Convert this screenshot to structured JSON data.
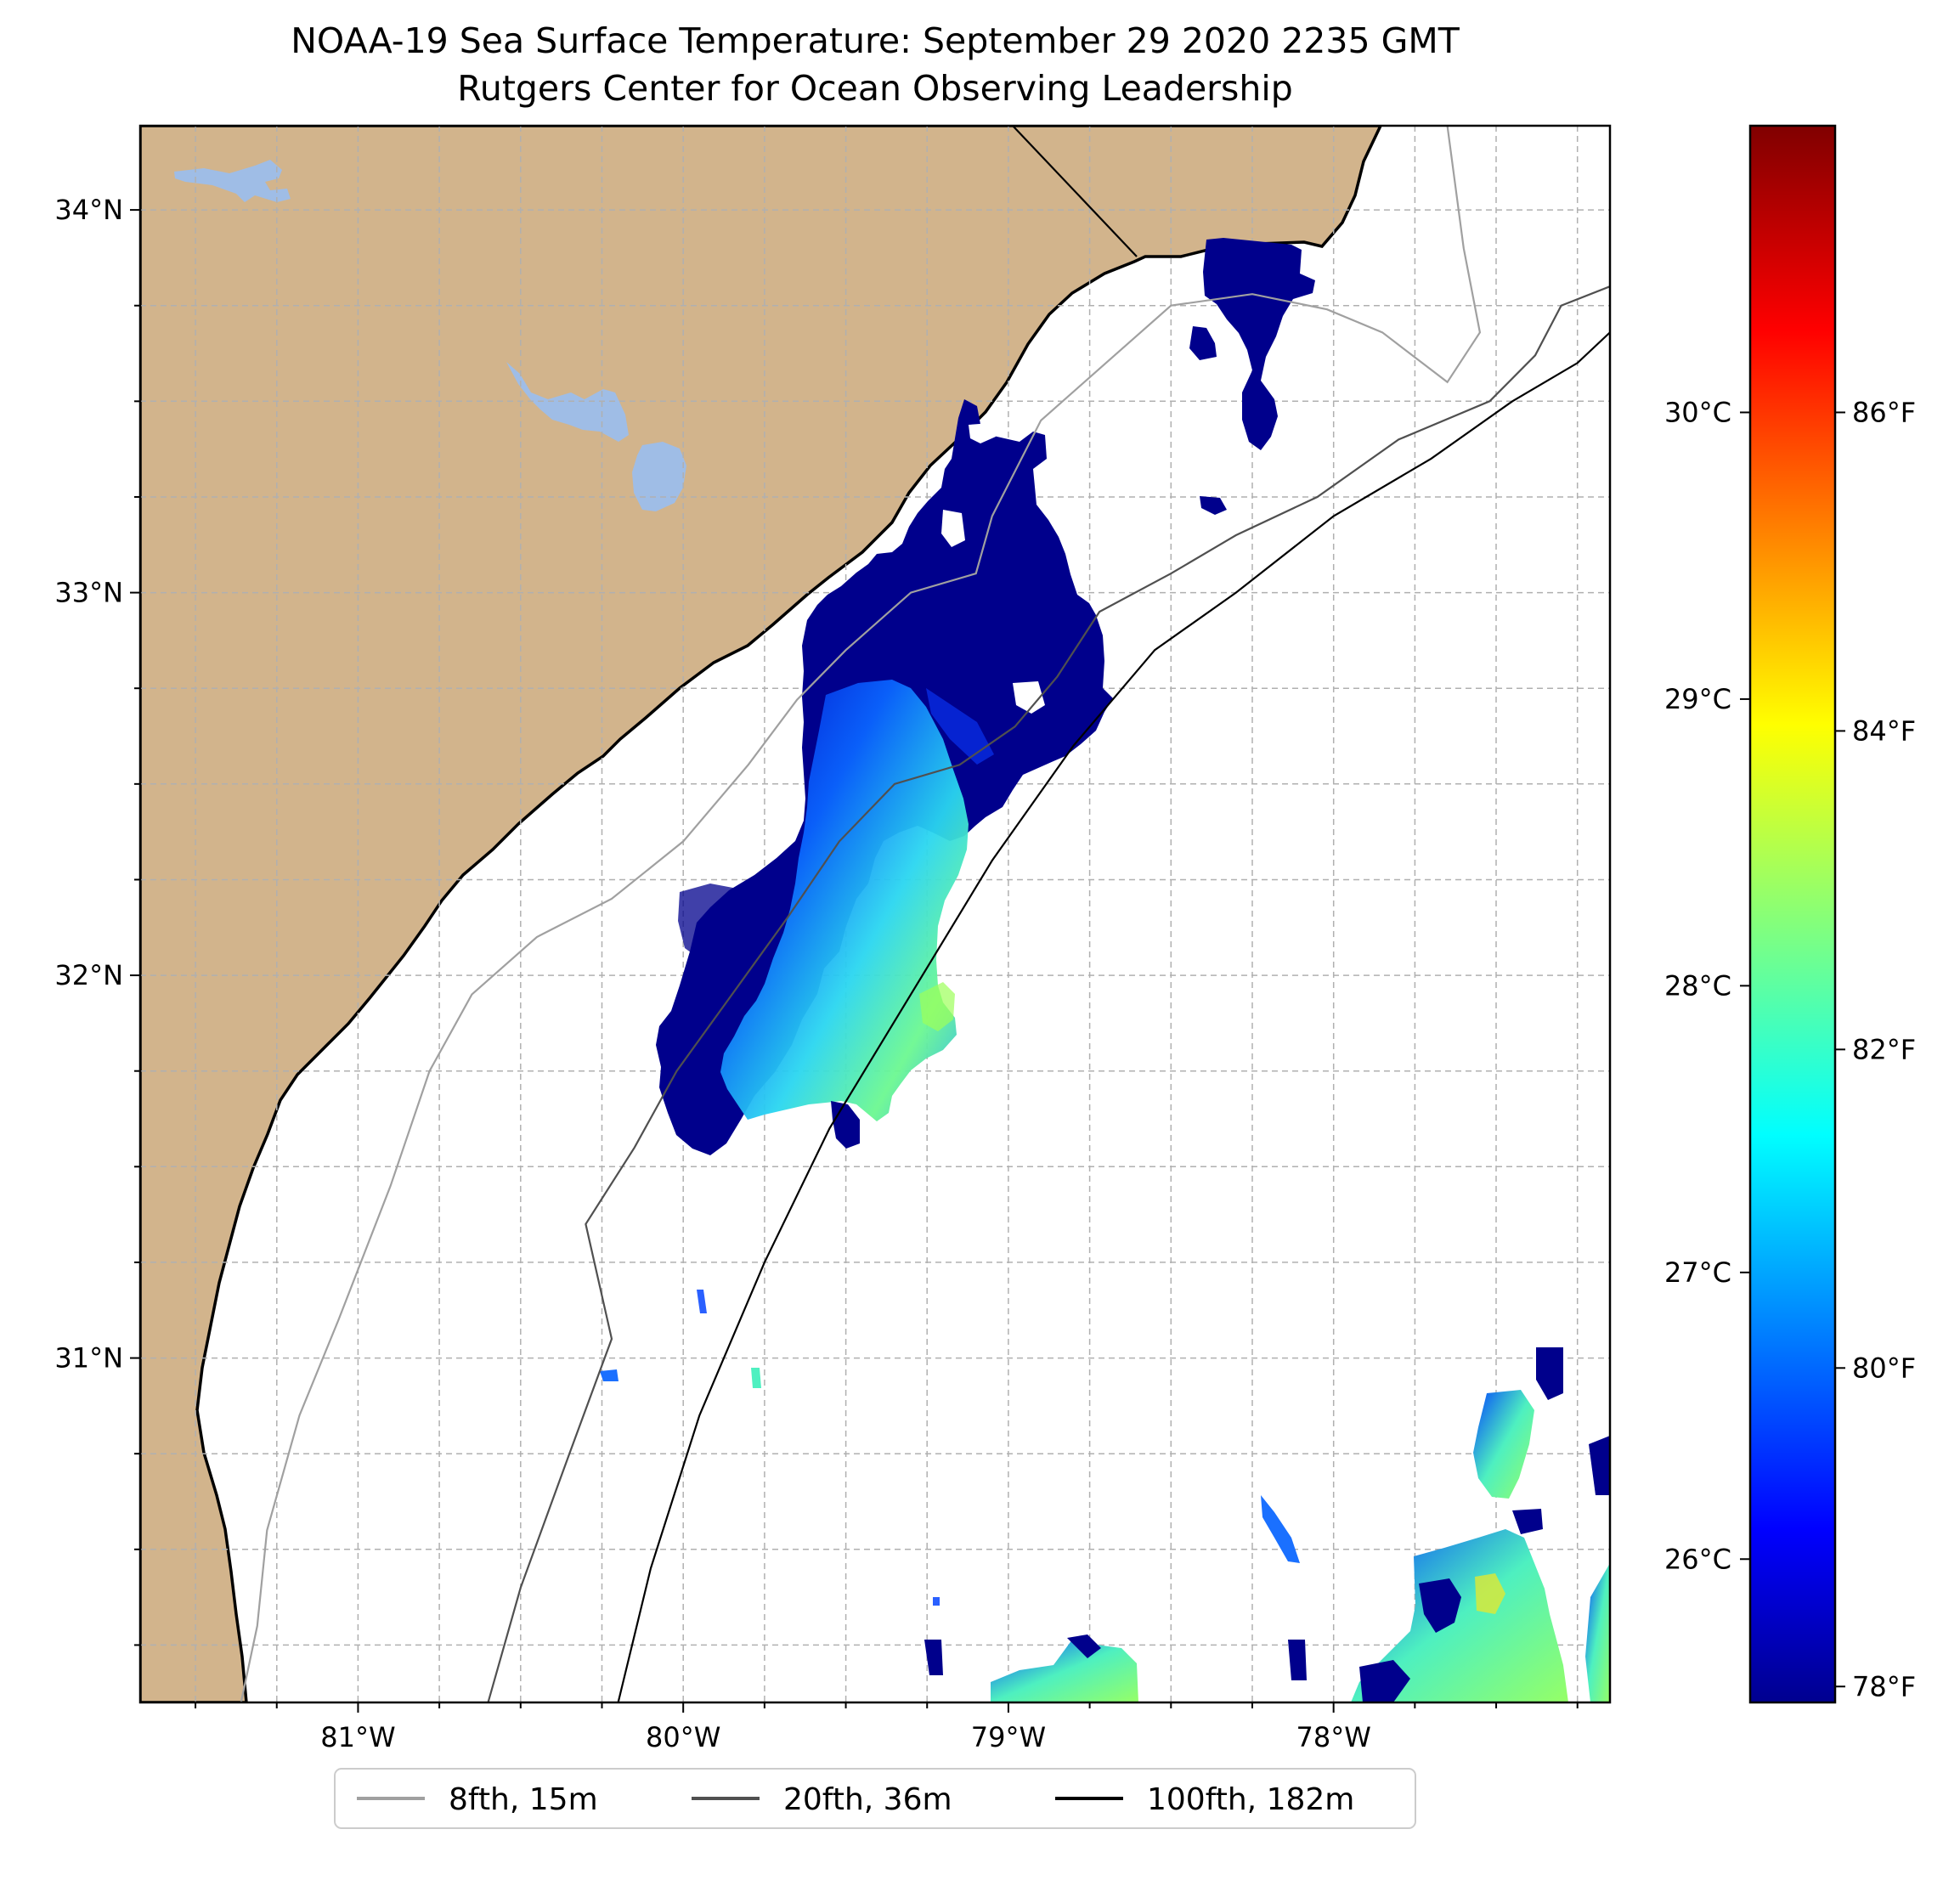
{
  "title": {
    "line1": "NOAA-19 Sea Surface Temperature: September 29 2020 2235 GMT",
    "line2": "Rutgers Center for Ocean Observing Leadership"
  },
  "map": {
    "lon_range": [
      -81.67,
      -77.15
    ],
    "lat_range": [
      30.1,
      34.22
    ],
    "land_color": "#d2b48c",
    "lake_color": "#9fbde6",
    "lon_ticks": [
      {
        "lon": -81,
        "label": "81°W"
      },
      {
        "lon": -80,
        "label": "80°W"
      },
      {
        "lon": -79,
        "label": "79°W"
      },
      {
        "lon": -78,
        "label": "78°W"
      }
    ],
    "lat_ticks": [
      {
        "lat": 31,
        "label": "31°N"
      },
      {
        "lat": 32,
        "label": "32°N"
      },
      {
        "lat": 33,
        "label": "33°N"
      },
      {
        "lat": 34,
        "label": "34°N"
      }
    ],
    "gridlines": true
  },
  "colorbar": {
    "colormap": "jet",
    "celsius_ticks": [
      {
        "value": 26,
        "label": "26°C"
      },
      {
        "value": 27,
        "label": "27°C"
      },
      {
        "value": 28,
        "label": "28°C"
      },
      {
        "value": 29,
        "label": "29°C"
      },
      {
        "value": 30,
        "label": "30°C"
      }
    ],
    "fahrenheit_ticks": [
      {
        "value": 78,
        "label": "78°F"
      },
      {
        "value": 80,
        "label": "80°F"
      },
      {
        "value": 82,
        "label": "82°F"
      },
      {
        "value": 84,
        "label": "84°F"
      },
      {
        "value": 86,
        "label": "86°F"
      }
    ],
    "range_celsius": [
      25.5,
      31.0
    ]
  },
  "legend": {
    "placement": "bottom-center",
    "items": [
      {
        "label": "8fth, 15m",
        "color": "#a0a0a0"
      },
      {
        "label": "20fth, 36m",
        "color": "#505050"
      },
      {
        "label": "100fth, 182m",
        "color": "#000000"
      }
    ]
  }
}
